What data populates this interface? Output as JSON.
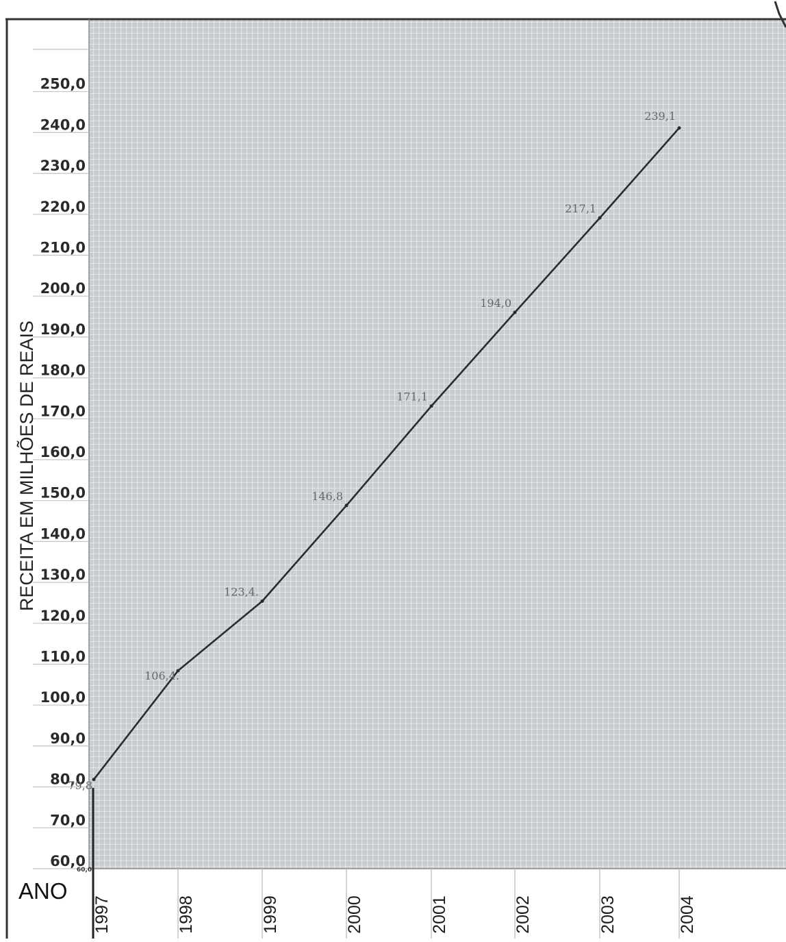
{
  "chart_data": {
    "type": "line",
    "xlabel": "ANO",
    "ylabel": "RECEITA EM MILHÕES DE REAIS",
    "x": [
      "1997",
      "1998",
      "1999",
      "2000",
      "2001",
      "2002",
      "2003",
      "2004"
    ],
    "series": [
      {
        "values": [
          79.8,
          106.4,
          123.4,
          146.8,
          171.1,
          194.0,
          217.1,
          239.1
        ],
        "labels": [
          "79,8",
          "106,4.",
          "123,4.",
          "146,8",
          "171,1",
          "194,0",
          "217,1",
          "239,1"
        ]
      }
    ],
    "yticks": [
      "60,0",
      "70,0",
      "80,0",
      "90,0",
      "100,0",
      "110,0",
      "120,0",
      "130,0",
      "140,0",
      "150,0",
      "160,0",
      "170,0",
      "180,0",
      "190,0",
      "200,0",
      "210,0",
      "220,0",
      "230,0",
      "240,0",
      "250,0"
    ],
    "ylim": [
      60,
      260
    ],
    "origin_tick": "60,0",
    "grid": true,
    "colors": {
      "grid_bg": "#c9cdd2",
      "grid_line": "#f2f4f6",
      "line": "#2b2b2b"
    }
  }
}
